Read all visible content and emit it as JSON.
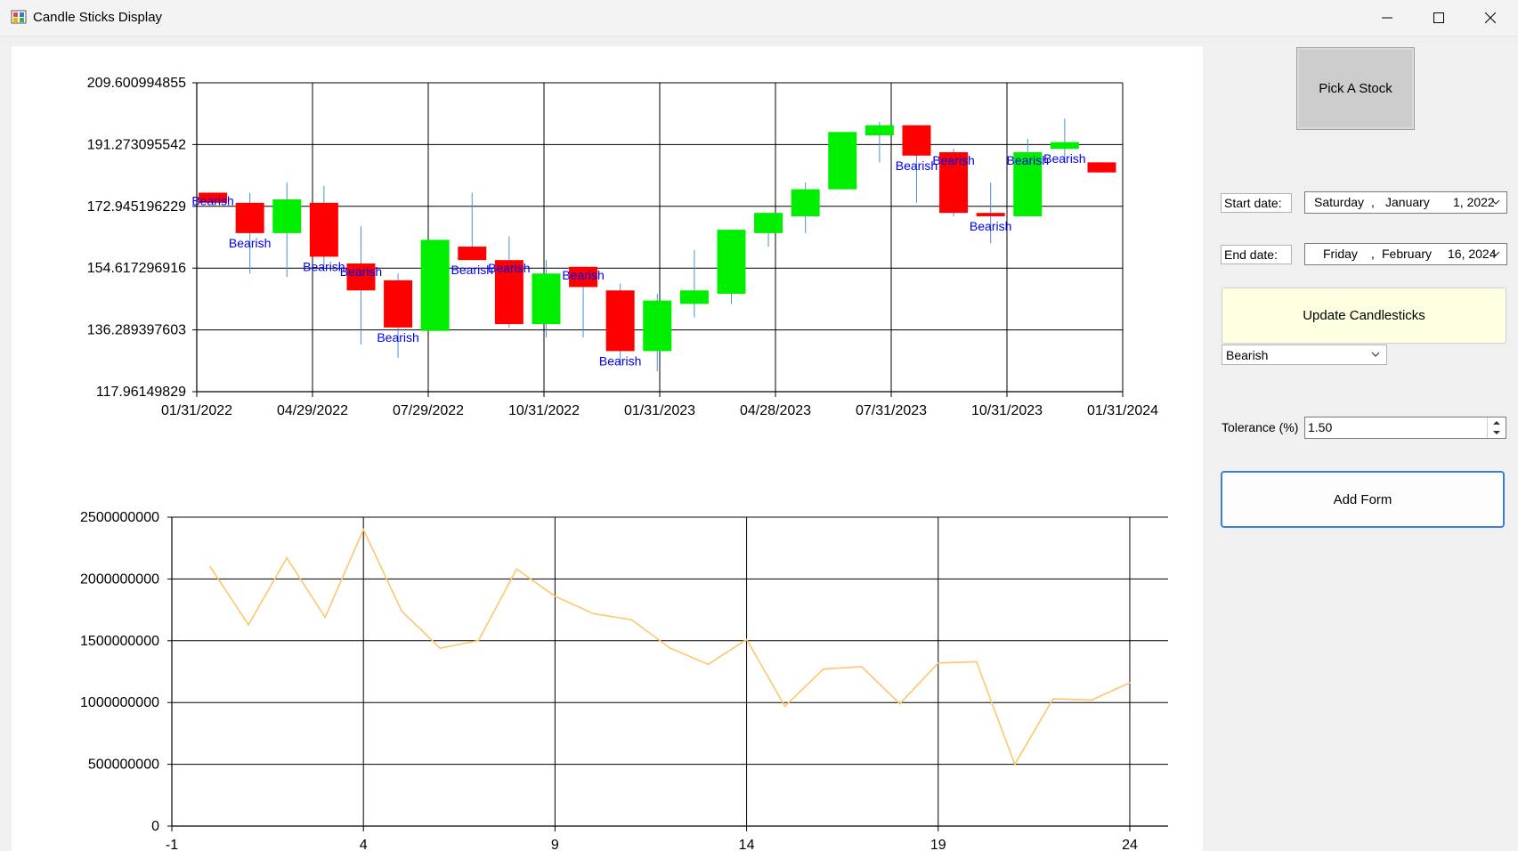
{
  "window": {
    "title": "Candle Sticks Display"
  },
  "controls": {
    "pick_stock": "Pick A Stock",
    "start_label": "Start date:",
    "start_date": {
      "day": "Saturday",
      "sep": ",",
      "month": "January",
      "date": "1, 2022"
    },
    "end_label": "End date:",
    "end_date": {
      "day": "Friday",
      "sep": ",",
      "month": "February",
      "date": "16, 2024"
    },
    "update": "Update Candlesticks",
    "pattern_selected": "Bearish",
    "tolerance_label": "Tolerance (%)",
    "tolerance_value": "1.50",
    "add_form": "Add Form"
  },
  "colors": {
    "up": "#00ee00",
    "down": "#ff0000",
    "wick": "#4a90e2",
    "annotation": "#0000ee",
    "volume_line": "#ffc66b",
    "update_bg": "#ffffe1",
    "add_form_border": "#3c7fd6"
  },
  "chart_data": [
    {
      "type": "candlestick",
      "y_ticks": [
        "209.600994855",
        "191.273095542",
        "172.945196229",
        "154.617296916",
        "136.289397603",
        "117.96149829"
      ],
      "ylim": [
        117.96149829,
        209.600994855
      ],
      "x_ticks": [
        "01/31/2022",
        "04/29/2022",
        "07/29/2022",
        "10/31/2022",
        "01/31/2023",
        "04/28/2023",
        "07/31/2023",
        "10/31/2023",
        "01/31/2024"
      ],
      "grid": true,
      "candles": [
        {
          "o": 177,
          "h": 177,
          "l": 174,
          "c": 174,
          "label": "Bearish"
        },
        {
          "o": 174,
          "h": 177,
          "l": 153,
          "c": 165,
          "label": "Bearish"
        },
        {
          "o": 165,
          "h": 180,
          "l": 152,
          "c": 175
        },
        {
          "o": 174,
          "h": 179,
          "l": 155,
          "c": 158,
          "label": "Bearish"
        },
        {
          "o": 156,
          "h": 167,
          "l": 132,
          "c": 148,
          "label": "Bearish"
        },
        {
          "o": 151,
          "h": 153,
          "l": 128,
          "c": 137,
          "label": "Bearish"
        },
        {
          "o": 136,
          "h": 163,
          "l": 136,
          "c": 163
        },
        {
          "o": 161,
          "h": 177,
          "l": 157,
          "c": 157,
          "label": "Bearish"
        },
        {
          "o": 157,
          "h": 164,
          "l": 137,
          "c": 138,
          "label": "Bearish"
        },
        {
          "o": 138,
          "h": 157,
          "l": 134,
          "c": 153
        },
        {
          "o": 155,
          "h": 155,
          "l": 134,
          "c": 149,
          "label": "Bearish"
        },
        {
          "o": 148,
          "h": 150,
          "l": 126,
          "c": 130,
          "label": "Bearish"
        },
        {
          "o": 130,
          "h": 147,
          "l": 124,
          "c": 145
        },
        {
          "o": 144,
          "h": 160,
          "l": 140,
          "c": 148
        },
        {
          "o": 147,
          "h": 166,
          "l": 144,
          "c": 166
        },
        {
          "o": 165,
          "h": 171,
          "l": 161,
          "c": 171
        },
        {
          "o": 170,
          "h": 180,
          "l": 165,
          "c": 178
        },
        {
          "o": 178,
          "h": 195,
          "l": 178,
          "c": 195
        },
        {
          "o": 194,
          "h": 198,
          "l": 186,
          "c": 197
        },
        {
          "o": 197,
          "h": 197,
          "l": 174,
          "c": 188,
          "label": "Bearish"
        },
        {
          "o": 189,
          "h": 190,
          "l": 170,
          "c": 171,
          "label": "Bearish"
        },
        {
          "o": 171,
          "h": 180,
          "l": 162,
          "c": 170,
          "label": "Bearish"
        },
        {
          "o": 170,
          "h": 193,
          "l": 170,
          "c": 189,
          "label": "Bearish"
        },
        {
          "o": 190,
          "h": 199,
          "l": 186,
          "c": 192,
          "label": "Bearish"
        },
        {
          "o": 186,
          "h": 186,
          "l": 183,
          "c": 183
        }
      ]
    },
    {
      "type": "line",
      "name": "",
      "x_ticks": [
        "-1",
        "4",
        "9",
        "14",
        "19",
        "24"
      ],
      "y_ticks": [
        "2500000000",
        "2000000000",
        "1500000000",
        "1000000000",
        "500000000",
        "0"
      ],
      "xlim": [
        -1,
        25
      ],
      "ylim": [
        0,
        2500000000
      ],
      "grid": true,
      "x": [
        0,
        1,
        2,
        3,
        4,
        5,
        6,
        7,
        8,
        9,
        10,
        11,
        12,
        13,
        14,
        15,
        16,
        17,
        18,
        19,
        20,
        21,
        22,
        23,
        24
      ],
      "values": [
        2100000000,
        1630000000,
        2170000000,
        1690000000,
        2400000000,
        1740000000,
        1440000000,
        1500000000,
        2080000000,
        1860000000,
        1720000000,
        1670000000,
        1440000000,
        1310000000,
        1510000000,
        970000000,
        1270000000,
        1290000000,
        990000000,
        1320000000,
        1330000000,
        500000000,
        1030000000,
        1020000000,
        1160000000
      ]
    }
  ]
}
